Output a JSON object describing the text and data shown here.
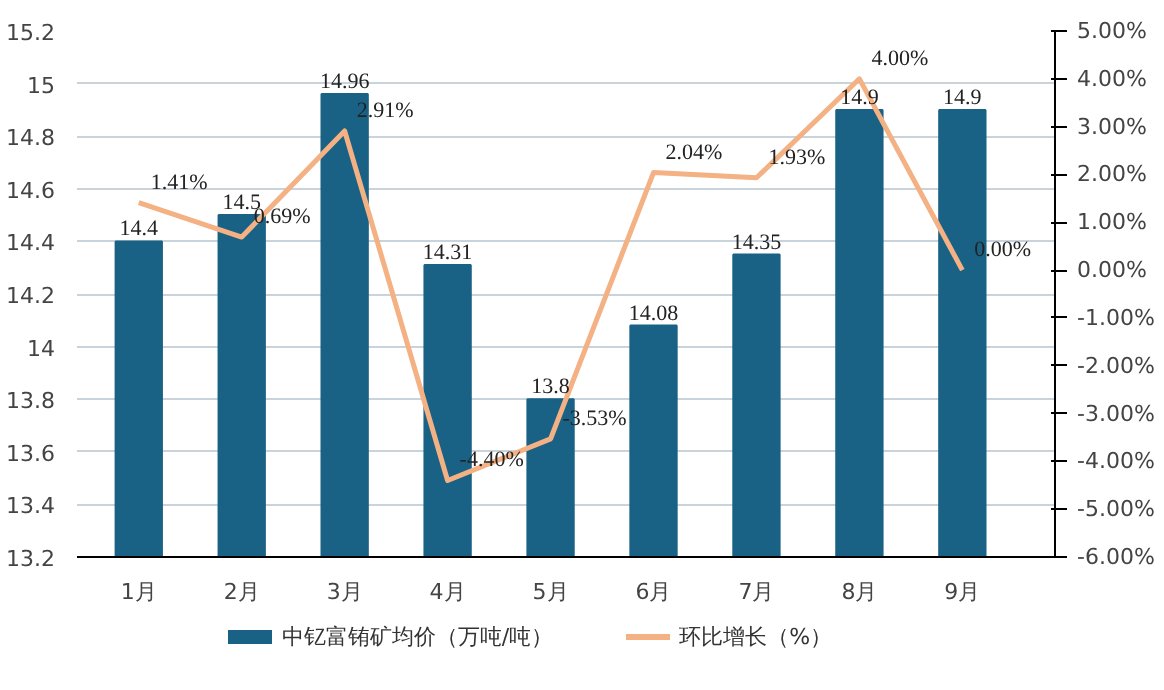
{
  "chart_data": {
    "type": "bar",
    "categories": [
      "1月",
      "2月",
      "3月",
      "4月",
      "5月",
      "6月",
      "7月",
      "8月",
      "9月"
    ],
    "series": [
      {
        "name": "中钇富铕矿均价（万吨/吨）",
        "color": "#1a6285",
        "values": [
          14.4,
          14.5,
          14.96,
          14.31,
          13.8,
          14.08,
          14.35,
          14.9,
          14.9
        ]
      },
      {
        "name": "环比增长（%）",
        "type": "line",
        "axis": "y2",
        "color": "#f4b183",
        "values": [
          1.41,
          0.69,
          2.91,
          -4.4,
          -3.53,
          2.04,
          1.93,
          4.0,
          0.0
        ],
        "value_labels": [
          "1.41%",
          "0.69%",
          "2.91%",
          "-4.40%",
          "-3.53%",
          "2.04%",
          "1.93%",
          "4.00%",
          "0.00%"
        ]
      }
    ],
    "ylim": [
      13.2,
      15.2
    ],
    "yticks": [
      13.2,
      13.4,
      13.6,
      13.8,
      14,
      14.2,
      14.4,
      14.6,
      14.8,
      15,
      15.2
    ],
    "y2lim": [
      -6,
      5
    ],
    "y2ticks": [
      {
        "value": -6,
        "label": "-6.00%"
      },
      {
        "value": -5,
        "label": "-5.00%"
      },
      {
        "value": -4,
        "label": "-4.00%"
      },
      {
        "value": -3,
        "label": "-3.00%"
      },
      {
        "value": -2,
        "label": "-2.00%"
      },
      {
        "value": -1,
        "label": "-1.00%"
      },
      {
        "value": 0,
        "label": "0.00%"
      },
      {
        "value": 1,
        "label": "1.00%"
      },
      {
        "value": 2,
        "label": "2.00%"
      },
      {
        "value": 3,
        "label": "3.00%"
      },
      {
        "value": 4,
        "label": "4.00%"
      },
      {
        "value": 5,
        "label": "5.00%"
      }
    ],
    "data_labels": true,
    "grid": "y",
    "legend": "bottom"
  }
}
